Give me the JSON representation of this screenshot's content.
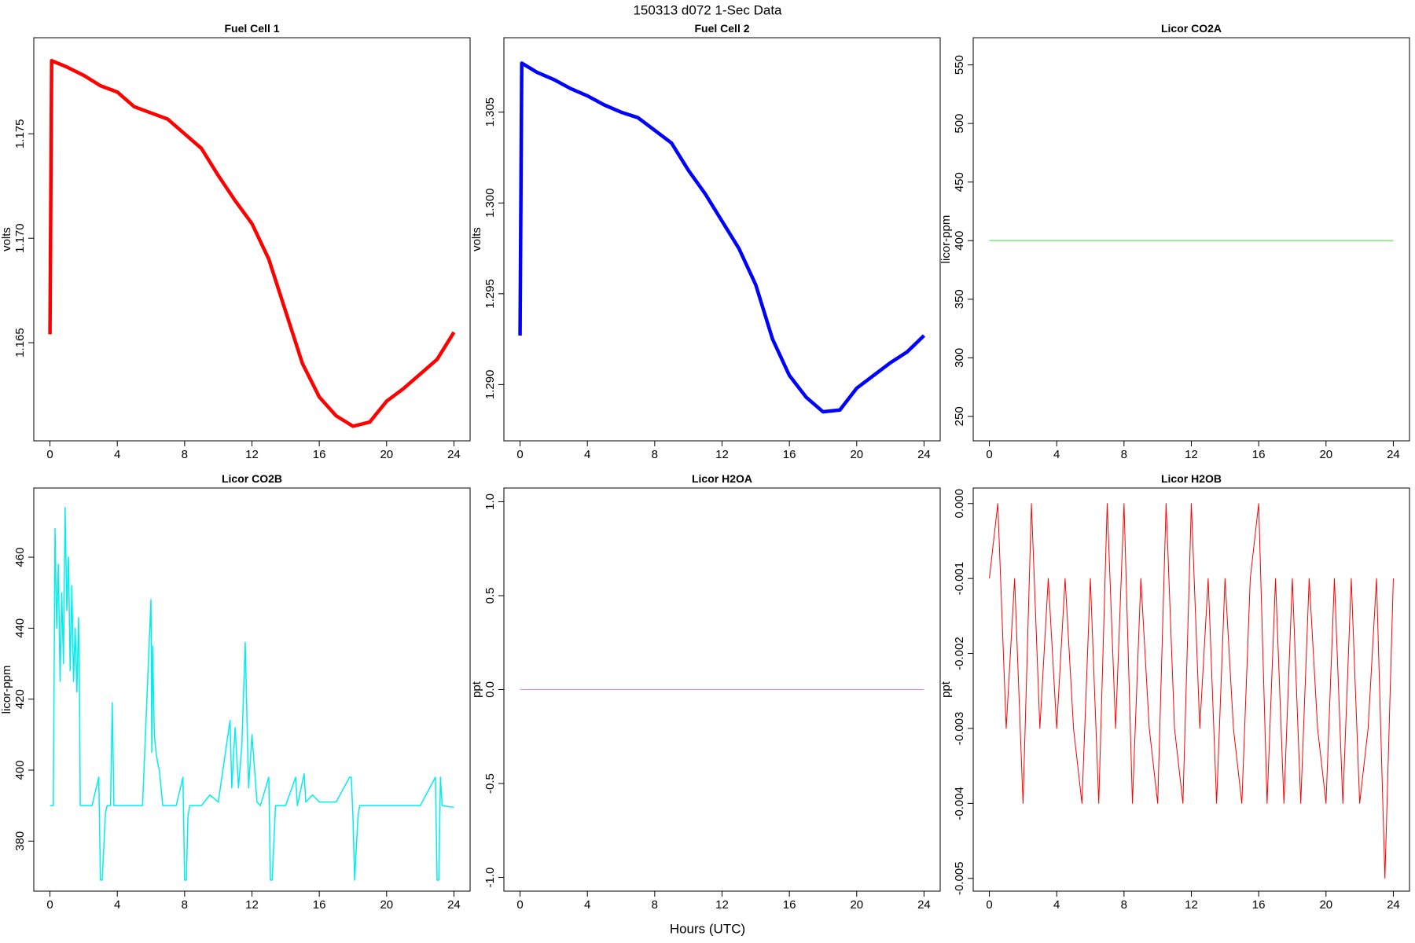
{
  "title": "150313   d072   1-Sec Data",
  "xlabel": "Hours (UTC)",
  "chart_data": [
    {
      "type": "line",
      "title": "Fuel Cell 1",
      "ylabel": "volts",
      "color": "#ff0000",
      "x": [
        0,
        0.1,
        1,
        2,
        3,
        4,
        5,
        6,
        7,
        8,
        9,
        10,
        11,
        12,
        13,
        14,
        15,
        16,
        17,
        18,
        19,
        20,
        21,
        22,
        23,
        24
      ],
      "values": [
        1.1654,
        1.1785,
        1.1782,
        1.1778,
        1.1773,
        1.177,
        1.1763,
        1.176,
        1.1757,
        1.175,
        1.1743,
        1.173,
        1.1718,
        1.1707,
        1.169,
        1.1665,
        1.164,
        1.1624,
        1.1615,
        1.161,
        1.1612,
        1.1622,
        1.1628,
        1.1635,
        1.1642,
        1.1655
      ],
      "xlim": [
        -0.96,
        24.96
      ],
      "xticks": [
        0,
        4,
        8,
        12,
        16,
        20,
        24
      ],
      "ylim": [
        1.1603,
        1.1796
      ],
      "yticks": [
        1.165,
        {
          "value": 1.17,
          "label": "1.170"
        },
        1.175
      ]
    },
    {
      "type": "line",
      "title": "Fuel Cell 2",
      "ylabel": "volts",
      "color": "#0000ff",
      "x": [
        0,
        0.1,
        1,
        2,
        3,
        4,
        5,
        6,
        7,
        8,
        9,
        10,
        11,
        12,
        13,
        14,
        15,
        16,
        17,
        18,
        19,
        20,
        21,
        22,
        23,
        24
      ],
      "values": [
        1.2927,
        1.3077,
        1.3072,
        1.3068,
        1.3063,
        1.3059,
        1.3054,
        1.305,
        1.3047,
        1.304,
        1.3033,
        1.3018,
        1.3005,
        1.299,
        1.2975,
        1.2955,
        1.2925,
        1.2905,
        1.2893,
        1.2885,
        1.2886,
        1.2898,
        1.2905,
        1.2912,
        1.2918,
        1.2927
      ],
      "xlim": [
        -0.96,
        24.96
      ],
      "xticks": [
        0,
        4,
        8,
        12,
        16,
        20,
        24
      ],
      "ylim": [
        1.2869,
        1.3091
      ],
      "yticks": [
        {
          "value": 1.29,
          "label": "1.290"
        },
        1.295,
        {
          "value": 1.3,
          "label": "1.300"
        },
        1.305
      ]
    },
    {
      "type": "line",
      "title": "Licor CO2A",
      "ylabel": "licor-ppm",
      "color": "#77ee77",
      "x": [
        0,
        24
      ],
      "values": [
        400,
        400
      ],
      "xlim": [
        -0.96,
        24.96
      ],
      "xticks": [
        0,
        4,
        8,
        12,
        16,
        20,
        24
      ],
      "ylim": [
        229.1,
        573.2
      ],
      "yticks": [
        250,
        300,
        350,
        400,
        450,
        500,
        550
      ]
    },
    {
      "type": "line",
      "title": "Licor CO2B",
      "ylabel": "licor-ppm",
      "color": "#00eeee",
      "x": [
        0,
        0.2,
        0.3,
        0.4,
        0.5,
        0.6,
        0.7,
        0.8,
        0.9,
        1.0,
        1.1,
        1.2,
        1.3,
        1.4,
        1.5,
        1.6,
        1.7,
        1.75,
        1.8,
        2.5,
        2.9,
        3.0,
        3.1,
        3.3,
        3.4,
        3.6,
        3.7,
        3.8,
        4.5,
        5.5,
        6.0,
        6.05,
        6.1,
        6.2,
        6.3,
        6.4,
        6.5,
        6.6,
        6.7,
        7.5,
        7.9,
        8.0,
        8.1,
        8.2,
        8.3,
        9.0,
        9.5,
        10.0,
        10.7,
        10.8,
        11.0,
        11.2,
        11.4,
        11.6,
        11.8,
        12.0,
        12.3,
        12.5,
        13.0,
        13.1,
        13.2,
        13.4,
        14.0,
        14.6,
        14.7,
        15.1,
        15.2,
        15.6,
        16.0,
        16.5,
        17.0,
        17.8,
        17.9,
        18.0,
        18.1,
        18.3,
        18.4,
        19.0,
        20.0,
        21.0,
        22.0,
        22.9,
        23.0,
        23.1,
        23.2,
        23.3,
        24.0
      ],
      "values": [
        390,
        390,
        468,
        440,
        458,
        425,
        450,
        430,
        474,
        445,
        460,
        428,
        452,
        425,
        440,
        422,
        443,
        425,
        390,
        390,
        398,
        369,
        369,
        388,
        390,
        390,
        419,
        390,
        390,
        390,
        448,
        405,
        435,
        410,
        405,
        402,
        400,
        395,
        390,
        390,
        398,
        369,
        369,
        387,
        390,
        390,
        393,
        391,
        414,
        395,
        412,
        395,
        407,
        436,
        395,
        410,
        391,
        390,
        398,
        369,
        369,
        390,
        390,
        398,
        390,
        399,
        391,
        393,
        391,
        391,
        391,
        398,
        398,
        387,
        369,
        387,
        390,
        390,
        390,
        390,
        390,
        398,
        369,
        369,
        398,
        390,
        389.5
      ],
      "xlim": [
        -0.96,
        24.96
      ],
      "xticks": [
        0,
        4,
        8,
        12,
        16,
        20,
        24
      ],
      "ylim": [
        365.9,
        479.5
      ],
      "yticks": [
        380,
        400,
        420,
        440,
        460
      ]
    },
    {
      "type": "line",
      "title": "Licor H2OA",
      "ylabel": "ppt",
      "color": "#dd88dd",
      "x": [
        0,
        24
      ],
      "values": [
        0,
        0
      ],
      "xlim": [
        -0.96,
        24.96
      ],
      "xticks": [
        0,
        4,
        8,
        12,
        16,
        20,
        24
      ],
      "ylim": [
        -1.073,
        1.073
      ],
      "yticks": [
        {
          "value": -1,
          "label": "-1.0"
        },
        -0.5,
        {
          "value": 0,
          "label": "0.0"
        },
        0.5,
        {
          "value": 1,
          "label": "1.0"
        }
      ]
    },
    {
      "type": "line",
      "title": "Licor H2OB",
      "ylabel": "ppt",
      "color": "#ff0000",
      "x": [
        0,
        0.5,
        1,
        1.5,
        2,
        2.5,
        3,
        3.5,
        4,
        4.5,
        5,
        5.5,
        6,
        6.5,
        7,
        7.5,
        8,
        8.5,
        9,
        9.5,
        10,
        10.5,
        11,
        11.5,
        12,
        12.5,
        13,
        13.5,
        14,
        14.5,
        15,
        15.5,
        16,
        16.5,
        17,
        17.5,
        18,
        18.5,
        19,
        19.5,
        20,
        20.5,
        21,
        21.5,
        22,
        22.5,
        23,
        23.5,
        24
      ],
      "values": [
        -0.001,
        0,
        -0.003,
        -0.001,
        -0.004,
        0,
        -0.003,
        -0.001,
        -0.003,
        -0.001,
        -0.003,
        -0.004,
        -0.001,
        -0.004,
        0,
        -0.003,
        0,
        -0.004,
        -0.001,
        -0.003,
        -0.004,
        0,
        -0.003,
        -0.004,
        0,
        -0.003,
        -0.001,
        -0.004,
        -0.001,
        -0.003,
        -0.004,
        -0.001,
        0,
        -0.004,
        -0.001,
        -0.004,
        -0.001,
        -0.004,
        -0.001,
        -0.003,
        -0.004,
        -0.001,
        -0.004,
        -0.001,
        -0.004,
        -0.003,
        -0.001,
        -0.005,
        -0.001
      ],
      "xlim": [
        -0.96,
        24.96
      ],
      "xticks": [
        0,
        4,
        8,
        12,
        16,
        20,
        24
      ],
      "ylim": [
        -0.00517,
        0.000207
      ],
      "yticks": [
        {
          "value": -0.005,
          "label": "-0.005"
        },
        {
          "value": -0.004,
          "label": "-0.004"
        },
        {
          "value": -0.003,
          "label": "-0.003"
        },
        {
          "value": -0.002,
          "label": "-0.002"
        },
        {
          "value": -0.001,
          "label": "-0.001"
        },
        {
          "value": 0,
          "label": "0.000"
        }
      ]
    }
  ]
}
